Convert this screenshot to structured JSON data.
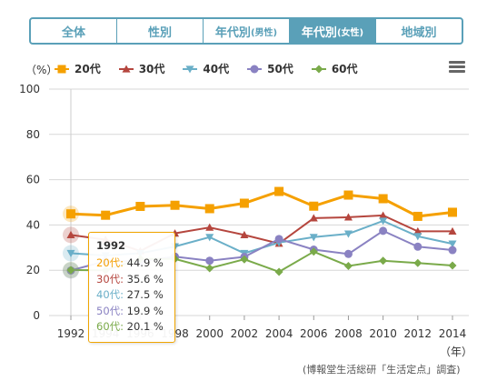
{
  "tabs": [
    {
      "label": "全体",
      "suffix": "",
      "active": false
    },
    {
      "label": "性別",
      "suffix": "",
      "active": false
    },
    {
      "label": "年代別",
      "suffix": "(男性)",
      "active": false
    },
    {
      "label": "年代別",
      "suffix": "(女性)",
      "active": true
    },
    {
      "label": "地域別",
      "suffix": "",
      "active": false
    }
  ],
  "unit_label": "（%）",
  "year_unit_label": "（年）",
  "source": "(博報堂生活総研「生活定点」調査)",
  "colors": {
    "s20": "#f5a000",
    "s30": "#b5463e",
    "s40": "#6aafc8",
    "s50": "#8a82c2",
    "s60": "#7aaa4a",
    "grid": "#d7d7d7",
    "tab": "#5aa0b8"
  },
  "tooltip": {
    "year": "1992",
    "rows": [
      {
        "label": "20代",
        "value": "44.9 %"
      },
      {
        "label": "30代",
        "value": "35.6 %"
      },
      {
        "label": "40代",
        "value": "27.5 %"
      },
      {
        "label": "50代",
        "value": "19.9 %"
      },
      {
        "label": "60代",
        "value": "20.1 %"
      }
    ]
  },
  "chart_data": {
    "type": "line",
    "x": [
      1992,
      1994,
      1996,
      1998,
      2000,
      2002,
      2004,
      2006,
      2008,
      2010,
      2012,
      2014
    ],
    "x_tick_labels": [
      "1992",
      "1994",
      "1996",
      "1998",
      "2000",
      "2002",
      "2004",
      "2006",
      "2008",
      "2010",
      "2012",
      "2014"
    ],
    "ylim": [
      0,
      100
    ],
    "y_ticks": [
      0,
      20,
      40,
      60,
      80,
      100
    ],
    "grid": true,
    "legend_position": "top-left",
    "series": [
      {
        "name": "20代",
        "marker": "square",
        "values": [
          44.9,
          44.3,
          48.2,
          48.7,
          47.2,
          49.6,
          54.8,
          48.3,
          53.2,
          51.6,
          43.8,
          45.6
        ]
      },
      {
        "name": "30代",
        "marker": "triangle-up",
        "values": [
          35.6,
          33.5,
          28.5,
          36.3,
          38.9,
          35.6,
          31.8,
          43.0,
          43.4,
          44.2,
          37.2,
          37.2
        ]
      },
      {
        "name": "40代",
        "marker": "triangle-down",
        "values": [
          27.5,
          26.5,
          27.5,
          30.5,
          34.6,
          27.5,
          32.2,
          34.6,
          36.1,
          41.8,
          35.0,
          31.7
        ]
      },
      {
        "name": "50代",
        "marker": "circle",
        "values": [
          19.9,
          24.0,
          24.0,
          26.0,
          24.2,
          25.9,
          33.8,
          29.1,
          27.2,
          37.4,
          30.4,
          28.9
        ]
      },
      {
        "name": "60代",
        "marker": "diamond",
        "values": [
          20.1,
          20.0,
          25.0,
          25.0,
          20.9,
          24.8,
          19.3,
          28.2,
          21.9,
          24.2,
          23.2,
          22.1
        ]
      }
    ]
  }
}
